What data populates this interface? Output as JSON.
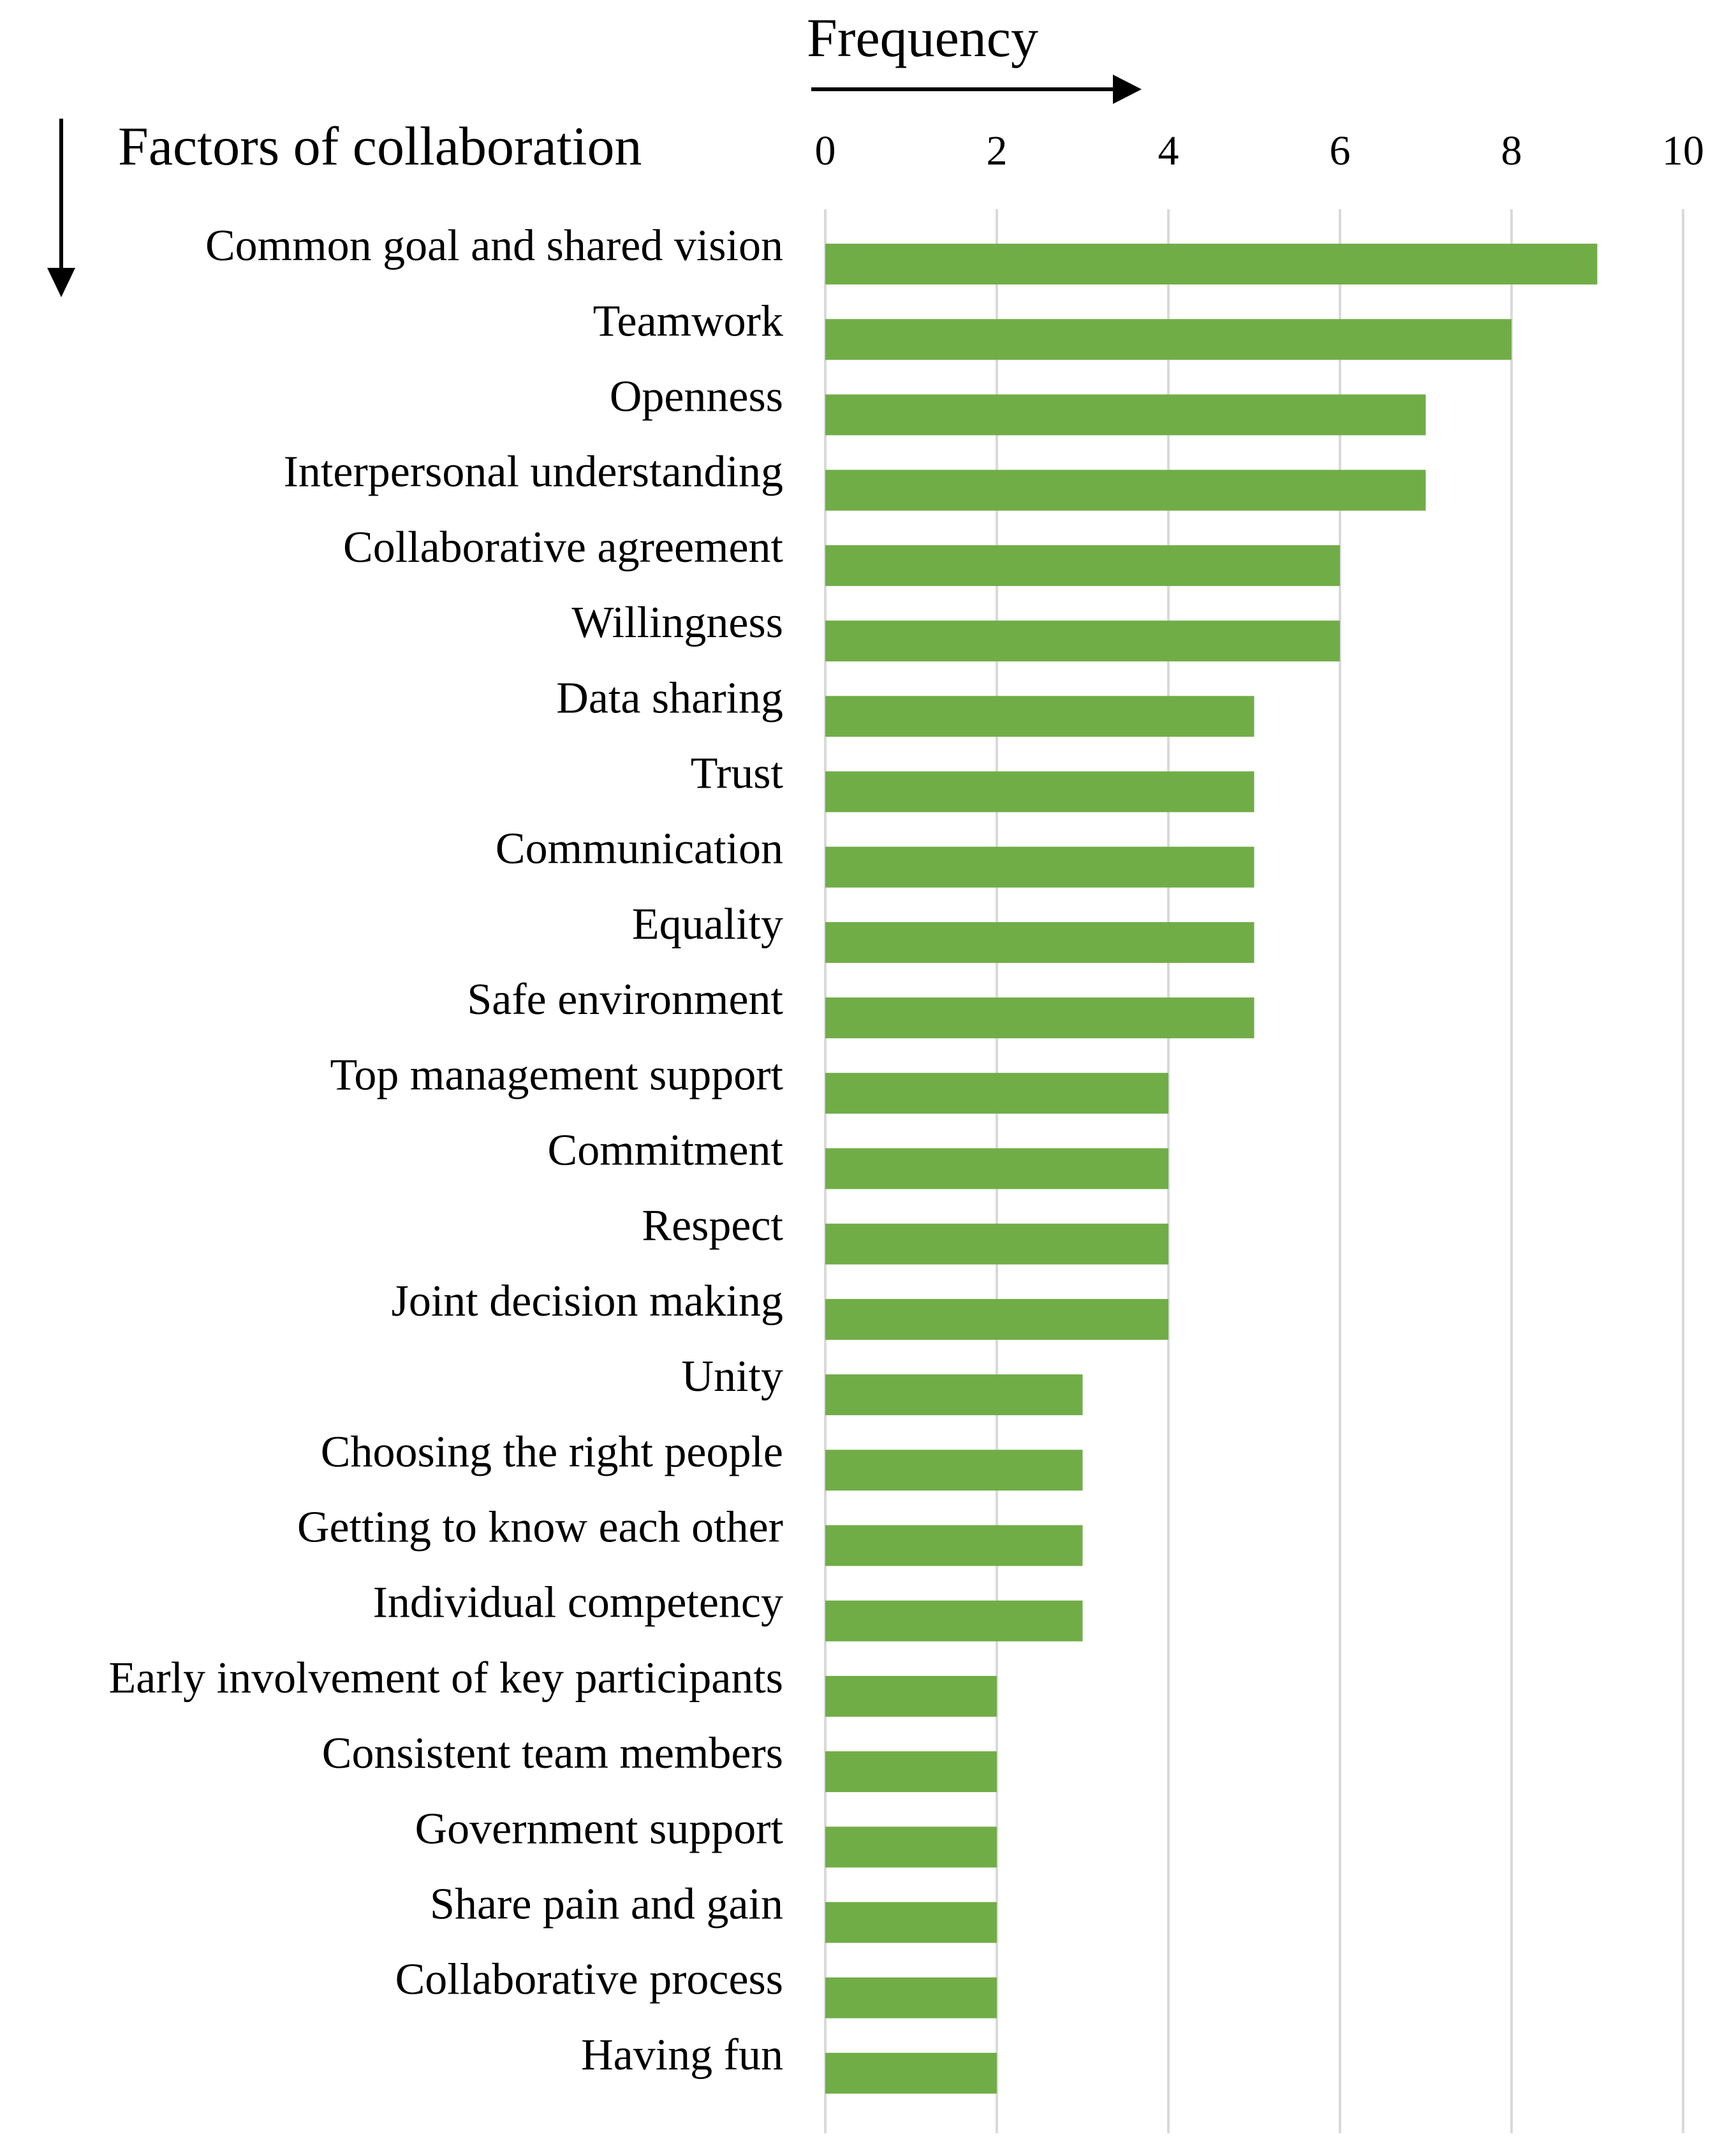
{
  "chart_data": {
    "type": "bar",
    "orientation": "horizontal",
    "x_axis_position": "top",
    "xlabel": "Frequency",
    "ylabel": "Factors of collaboration",
    "xlim": [
      0,
      10
    ],
    "x_ticks": [
      "0",
      "2",
      "4",
      "6",
      "8",
      "10"
    ],
    "grid": true,
    "bar_color": "#70AD47",
    "grid_color": "#D9D9D9",
    "categories": [
      "Common goal and shared vision",
      "Teamwork",
      "Openness",
      "Interpersonal understanding",
      "Collaborative agreement",
      "Willingness",
      "Data sharing",
      "Trust",
      "Communication",
      "Equality",
      "Safe environment",
      "Top management support",
      "Commitment",
      "Respect",
      "Joint decision making",
      "Unity",
      "Choosing the right people",
      "Getting to know each other",
      "Individual competency",
      "Early involvement of key participants",
      "Consistent team members",
      "Government support",
      "Share pain and gain",
      "Collaborative process",
      "Having fun"
    ],
    "values": [
      9,
      8,
      7,
      7,
      6,
      6,
      5,
      5,
      5,
      5,
      5,
      4,
      4,
      4,
      4,
      3,
      3,
      3,
      3,
      2,
      2,
      2,
      2,
      2,
      2
    ]
  }
}
